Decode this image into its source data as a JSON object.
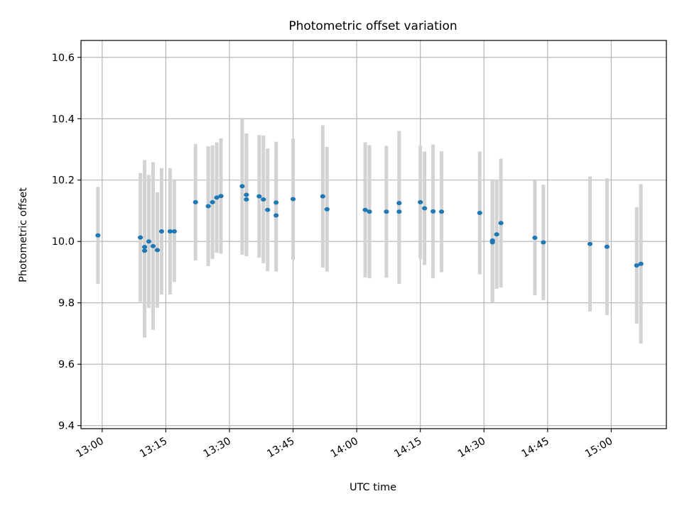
{
  "chart_data": {
    "type": "scatter",
    "title": "Photometric offset variation",
    "xlabel": "UTC time",
    "ylabel": "Photometric offset",
    "x_unit": "UTC",
    "xlim": [
      "12:55",
      "15:13"
    ],
    "ylim": [
      9.39,
      10.655
    ],
    "x_ticks": [
      "13:00",
      "13:15",
      "13:30",
      "13:45",
      "14:00",
      "14:15",
      "14:30",
      "14:45",
      "15:00"
    ],
    "y_ticks": [
      "9.4",
      "9.6",
      "9.8",
      "10.0",
      "10.2",
      "10.4",
      "10.6"
    ],
    "grid": true,
    "legend": "none",
    "colors": {
      "point": "#1f77b4",
      "errorbar": "#d3d3d3",
      "grid": "#b0b0b0",
      "axes": "#000000"
    },
    "series": [
      {
        "x": [
          "12:59",
          "13:09",
          "13:10",
          "13:10",
          "13:11",
          "13:12",
          "13:13",
          "13:14",
          "13:16",
          "13:17",
          "13:22",
          "13:25",
          "13:26",
          "13:27",
          "13:28",
          "13:33",
          "13:34",
          "13:34",
          "13:37",
          "13:38",
          "13:39",
          "13:41",
          "13:41",
          "13:45",
          "13:52",
          "13:53",
          "14:02",
          "14:03",
          "14:07",
          "14:10",
          "14:10",
          "14:15",
          "14:16",
          "14:18",
          "14:20",
          "14:29",
          "14:32",
          "14:32",
          "14:33",
          "14:34",
          "14:42",
          "14:44",
          "14:55",
          "14:59",
          "15:06",
          "15:07"
        ],
        "y": [
          10.02,
          10.013,
          9.97,
          9.982,
          10.0,
          9.985,
          9.972,
          10.033,
          10.033,
          10.033,
          10.128,
          10.115,
          10.128,
          10.143,
          10.148,
          10.18,
          10.152,
          10.137,
          10.147,
          10.137,
          10.103,
          10.085,
          10.127,
          10.138,
          10.147,
          10.105,
          10.103,
          10.097,
          10.097,
          10.097,
          10.125,
          10.128,
          10.108,
          10.098,
          10.097,
          10.093,
          10.003,
          9.997,
          10.023,
          10.06,
          10.012,
          9.997,
          9.992,
          9.983,
          9.922,
          9.927
        ],
        "yerr": [
          0.158,
          0.21,
          0.283,
          0.283,
          0.217,
          0.273,
          0.188,
          0.206,
          0.206,
          0.165,
          0.19,
          0.195,
          0.185,
          0.18,
          0.188,
          0.223,
          0.2,
          0.167,
          0.2,
          0.208,
          0.2,
          0.183,
          0.198,
          0.198,
          0.232,
          0.203,
          0.22,
          0.217,
          0.215,
          0.235,
          0.235,
          0.185,
          0.185,
          0.218,
          0.197,
          0.2,
          0.195,
          0.195,
          0.177,
          0.21,
          0.187,
          0.188,
          0.22,
          0.223,
          0.19,
          0.26
        ]
      }
    ]
  }
}
